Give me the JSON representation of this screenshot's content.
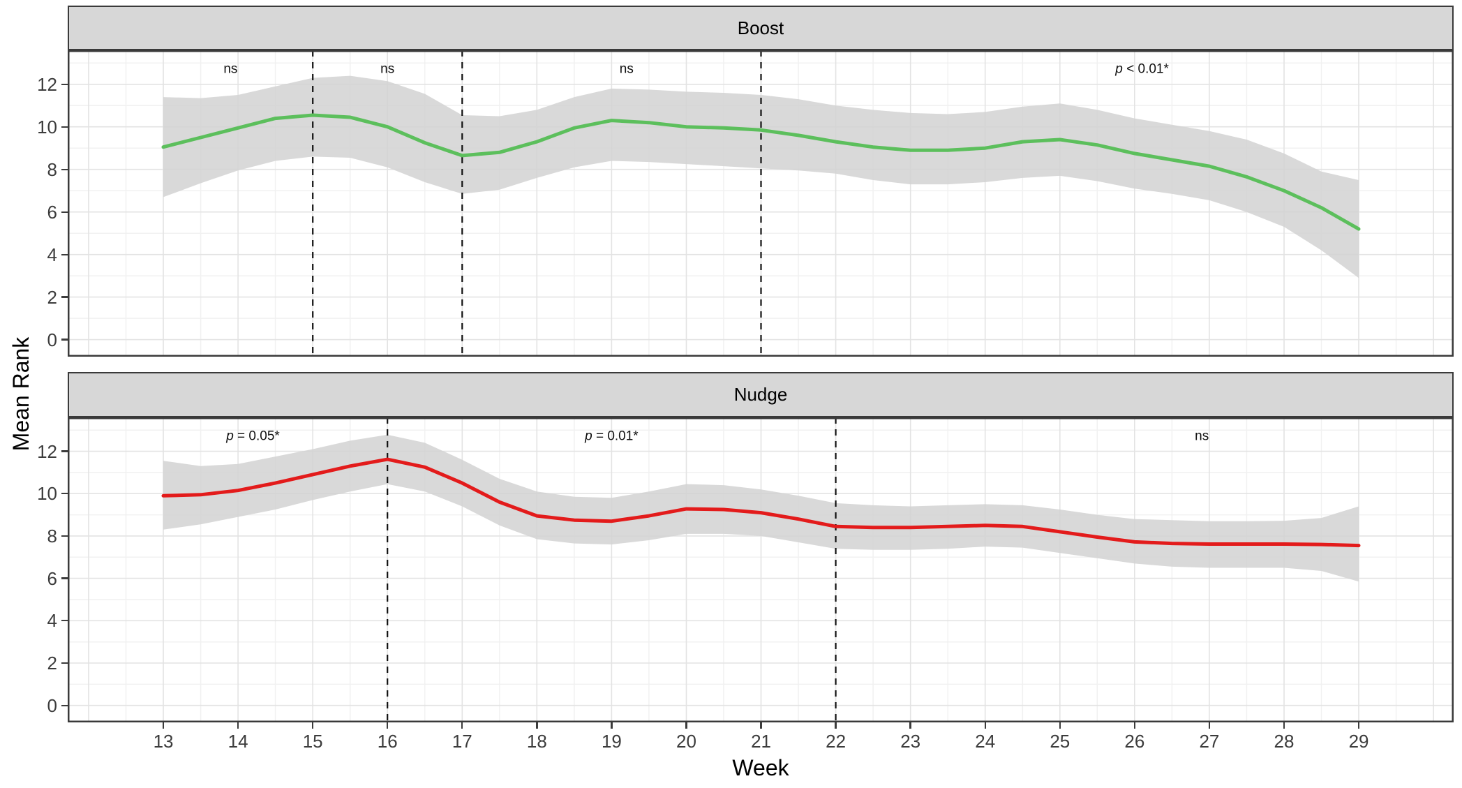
{
  "figure": {
    "y_axis_title": "Mean Rank",
    "x_axis_title": "Week",
    "x_ticks": [
      13,
      14,
      15,
      16,
      17,
      18,
      19,
      20,
      21,
      22,
      23,
      24,
      25,
      26,
      27,
      28,
      29
    ],
    "y_ticks": [
      0,
      2,
      4,
      6,
      8,
      10,
      12
    ],
    "xlim": [
      11.72,
      30.27
    ],
    "ylim": [
      -0.8,
      13.6
    ],
    "colors": {
      "boost_line": "#5CBF5C",
      "nudge_line": "#E31B1B",
      "ribbon": "#D2D2D2",
      "strip_bg": "#D7D7D7",
      "panel_border": "#3A3A3A",
      "grid_major": "#E3E3E3",
      "grid_minor": "#F1F1F1",
      "axis_text": "#3C3C3C",
      "dashed_line": "#111111",
      "annotation_text": "#111111"
    }
  },
  "chart_data": [
    {
      "type": "line",
      "panel": "Boost",
      "xlabel": "Week",
      "ylabel": "Mean Rank",
      "xlim": [
        11.72,
        30.27
      ],
      "ylim": [
        -0.8,
        13.6
      ],
      "grid": true,
      "x": [
        13,
        13.5,
        14,
        14.5,
        15,
        15.5,
        16,
        16.5,
        17,
        17.5,
        18,
        18.5,
        19,
        19.5,
        20,
        20.5,
        21,
        21.5,
        22,
        22.5,
        23,
        23.5,
        24,
        24.5,
        25,
        25.5,
        26,
        26.5,
        27,
        27.5,
        28,
        28.5,
        29
      ],
      "mean": [
        9.05,
        9.5,
        9.95,
        10.4,
        10.55,
        10.45,
        10.0,
        9.25,
        8.65,
        8.8,
        9.3,
        9.95,
        10.3,
        10.2,
        10.0,
        9.95,
        9.85,
        9.6,
        9.3,
        9.05,
        8.9,
        8.9,
        9.0,
        9.3,
        9.4,
        9.15,
        8.75,
        8.45,
        8.15,
        7.65,
        7.0,
        6.2,
        5.2
      ],
      "ci_upper": [
        11.4,
        11.35,
        11.5,
        11.9,
        12.3,
        12.4,
        12.15,
        11.55,
        10.55,
        10.5,
        10.8,
        11.4,
        11.8,
        11.75,
        11.65,
        11.6,
        11.5,
        11.3,
        11.0,
        10.8,
        10.65,
        10.6,
        10.7,
        10.95,
        11.1,
        10.8,
        10.4,
        10.1,
        9.8,
        9.4,
        8.75,
        7.9,
        7.5
      ],
      "ci_lower": [
        6.7,
        7.35,
        7.95,
        8.4,
        8.6,
        8.55,
        8.1,
        7.4,
        6.85,
        7.05,
        7.6,
        8.1,
        8.4,
        8.35,
        8.25,
        8.15,
        8.05,
        7.95,
        7.8,
        7.5,
        7.3,
        7.3,
        7.4,
        7.6,
        7.7,
        7.45,
        7.1,
        6.85,
        6.55,
        6.0,
        5.3,
        4.2,
        2.9
      ],
      "dashed_vlines_weeks": [
        15,
        17,
        21
      ],
      "annotations": [
        {
          "text": "ns",
          "x": 13.9,
          "y": 12.7,
          "italic_p": false
        },
        {
          "text": "ns",
          "x": 16.0,
          "y": 12.7,
          "italic_p": false
        },
        {
          "text": "ns",
          "x": 19.2,
          "y": 12.7,
          "italic_p": false
        },
        {
          "text": "p < 0.01*",
          "x": 26.1,
          "y": 12.7,
          "italic_p": true
        }
      ]
    },
    {
      "type": "line",
      "panel": "Nudge",
      "xlabel": "Week",
      "ylabel": "Mean Rank",
      "xlim": [
        11.72,
        30.27
      ],
      "ylim": [
        -0.8,
        13.6
      ],
      "grid": true,
      "x": [
        13,
        13.5,
        14,
        14.5,
        15,
        15.5,
        16,
        16.5,
        17,
        17.5,
        18,
        18.5,
        19,
        19.5,
        20,
        20.5,
        21,
        21.5,
        22,
        22.5,
        23,
        23.5,
        24,
        24.5,
        25,
        25.5,
        26,
        26.5,
        27,
        27.5,
        28,
        28.5,
        29
      ],
      "mean": [
        9.9,
        9.95,
        10.15,
        10.5,
        10.9,
        11.3,
        11.62,
        11.25,
        10.5,
        9.6,
        8.95,
        8.75,
        8.7,
        8.95,
        9.28,
        9.25,
        9.1,
        8.8,
        8.45,
        8.4,
        8.4,
        8.45,
        8.5,
        8.45,
        8.2,
        7.95,
        7.72,
        7.65,
        7.62,
        7.62,
        7.62,
        7.6,
        7.55
      ],
      "ci_upper": [
        11.55,
        11.3,
        11.4,
        11.75,
        12.1,
        12.5,
        12.78,
        12.4,
        11.6,
        10.7,
        10.1,
        9.85,
        9.8,
        10.1,
        10.45,
        10.4,
        10.2,
        9.9,
        9.55,
        9.45,
        9.4,
        9.45,
        9.5,
        9.45,
        9.25,
        9.0,
        8.8,
        8.75,
        8.7,
        8.7,
        8.72,
        8.85,
        9.4
      ],
      "ci_lower": [
        8.3,
        8.55,
        8.9,
        9.25,
        9.7,
        10.1,
        10.45,
        10.1,
        9.4,
        8.5,
        7.85,
        7.65,
        7.6,
        7.8,
        8.1,
        8.1,
        8.0,
        7.7,
        7.4,
        7.35,
        7.35,
        7.4,
        7.5,
        7.45,
        7.2,
        6.95,
        6.7,
        6.55,
        6.5,
        6.5,
        6.5,
        6.35,
        5.85
      ],
      "dashed_vlines_weeks": [
        16,
        22
      ],
      "annotations": [
        {
          "text": "p = 0.05*",
          "x": 14.2,
          "y": 12.7,
          "italic_p": true
        },
        {
          "text": "p = 0.01*",
          "x": 19.0,
          "y": 12.7,
          "italic_p": true
        },
        {
          "text": "ns",
          "x": 26.9,
          "y": 12.7,
          "italic_p": false
        }
      ]
    }
  ]
}
